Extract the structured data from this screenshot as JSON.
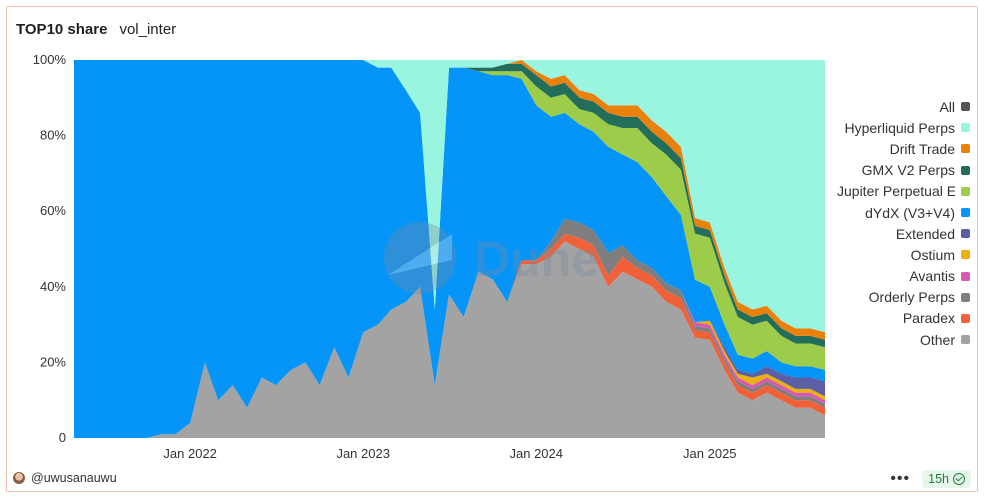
{
  "header": {
    "title": "TOP10 share",
    "subtitle": "vol_inter"
  },
  "footer": {
    "author": "@uwusanauwu",
    "refresh_badge": "15h",
    "more_icon": "ellipsis-icon",
    "status_icon": "check-circle-icon"
  },
  "watermark": "Dune",
  "legend": [
    {
      "label": "All",
      "color": "#555555"
    },
    {
      "label": "Hyperliquid Perps",
      "color": "#9af5e0"
    },
    {
      "label": "Drift Trade",
      "color": "#e8820c"
    },
    {
      "label": "GMX V2 Perps",
      "color": "#236e5a"
    },
    {
      "label": "Jupiter Perpetual Exchange",
      "color": "#9ccc4a"
    },
    {
      "label": "dYdX (V3+V4)",
      "color": "#0594f7"
    },
    {
      "label": "Extended",
      "color": "#5a5fa6"
    },
    {
      "label": "Ostium",
      "color": "#ecb00b"
    },
    {
      "label": "Avantis",
      "color": "#d65ab4"
    },
    {
      "label": "Orderly Perps",
      "color": "#7e7e7e"
    },
    {
      "label": "Paradex",
      "color": "#f0613a"
    },
    {
      "label": "Other",
      "color": "#a3a3a3"
    }
  ],
  "chart_data": {
    "type": "area",
    "stacked": true,
    "normalized": true,
    "x": [
      "2021-05-01",
      "2021-06-01",
      "2021-07-01",
      "2021-08-01",
      "2021-09-01",
      "2021-10-01",
      "2021-11-01",
      "2021-12-01",
      "2022-01-01",
      "2022-02-01",
      "2022-03-01",
      "2022-04-01",
      "2022-05-01",
      "2022-06-01",
      "2022-07-01",
      "2022-08-01",
      "2022-09-01",
      "2022-10-01",
      "2022-11-01",
      "2022-12-01",
      "2023-01-01",
      "2023-02-01",
      "2023-03-01",
      "2023-04-01",
      "2023-05-01",
      "2023-06-01",
      "2023-07-01",
      "2023-08-01",
      "2023-09-01",
      "2023-10-01",
      "2023-11-01",
      "2023-12-01",
      "2024-01-01",
      "2024-02-01",
      "2024-03-01",
      "2024-04-01",
      "2024-05-01",
      "2024-06-01",
      "2024-07-01",
      "2024-08-01",
      "2024-09-01",
      "2024-10-01",
      "2024-11-01",
      "2024-12-01",
      "2025-01-01",
      "2025-02-01",
      "2025-03-01",
      "2025-04-01",
      "2025-05-01",
      "2025-06-01",
      "2025-07-01",
      "2025-08-01",
      "2025-09-01"
    ],
    "series": [
      {
        "name": "Other",
        "values": [
          0,
          0,
          0,
          0,
          0,
          0,
          1,
          1,
          4,
          20,
          10,
          14,
          8,
          16,
          14,
          18,
          20,
          14,
          24,
          16,
          28,
          30,
          34,
          36,
          40,
          14,
          38,
          32,
          44,
          42,
          36,
          46,
          46,
          48,
          52,
          50,
          48,
          40,
          44,
          42,
          40,
          36,
          34,
          26,
          26,
          18,
          12,
          10,
          12,
          10,
          8,
          8,
          6
        ]
      },
      {
        "name": "Paradex",
        "values": [
          0,
          0,
          0,
          0,
          0,
          0,
          0,
          0,
          0,
          0,
          0,
          0,
          0,
          0,
          0,
          0,
          0,
          0,
          0,
          0,
          0,
          0,
          0,
          0,
          0,
          0,
          0,
          0,
          0,
          0,
          0,
          1,
          1,
          2,
          2,
          3,
          3,
          3,
          4,
          3,
          3,
          3,
          3,
          2,
          2,
          2,
          2,
          2,
          2,
          2,
          2,
          2,
          2
        ]
      },
      {
        "name": "Orderly Perps",
        "values": [
          0,
          0,
          0,
          0,
          0,
          0,
          0,
          0,
          0,
          0,
          0,
          0,
          0,
          0,
          0,
          0,
          0,
          0,
          0,
          0,
          0,
          0,
          0,
          0,
          0,
          0,
          0,
          0,
          0,
          0,
          0,
          0,
          0,
          2,
          4,
          4,
          4,
          6,
          3,
          2,
          2,
          2,
          2,
          1,
          1,
          1,
          1,
          1,
          1,
          1,
          1,
          1,
          1
        ]
      },
      {
        "name": "Avantis",
        "values": [
          0,
          0,
          0,
          0,
          0,
          0,
          0,
          0,
          0,
          0,
          0,
          0,
          0,
          0,
          0,
          0,
          0,
          0,
          0,
          0,
          0,
          0,
          0,
          0,
          0,
          0,
          0,
          0,
          0,
          0,
          0,
          0,
          0,
          0,
          0,
          0,
          0,
          0,
          0,
          0,
          0,
          0,
          0,
          1,
          1,
          1,
          1,
          1,
          1,
          1,
          1,
          1,
          1
        ]
      },
      {
        "name": "Ostium",
        "values": [
          0,
          0,
          0,
          0,
          0,
          0,
          0,
          0,
          0,
          0,
          0,
          0,
          0,
          0,
          0,
          0,
          0,
          0,
          0,
          0,
          0,
          0,
          0,
          0,
          0,
          0,
          0,
          0,
          0,
          0,
          0,
          0,
          0,
          0,
          0,
          0,
          0,
          0,
          0,
          0,
          0,
          0,
          0,
          0,
          1,
          1,
          1,
          2,
          1,
          1,
          1,
          1,
          1
        ]
      },
      {
        "name": "Extended",
        "values": [
          0,
          0,
          0,
          0,
          0,
          0,
          0,
          0,
          0,
          0,
          0,
          0,
          0,
          0,
          0,
          0,
          0,
          0,
          0,
          0,
          0,
          0,
          0,
          0,
          0,
          0,
          0,
          0,
          0,
          0,
          0,
          0,
          0,
          0,
          0,
          0,
          0,
          0,
          0,
          0,
          0,
          0,
          0,
          0,
          0,
          1,
          1,
          1,
          2,
          2,
          3,
          3,
          4
        ]
      },
      {
        "name": "dYdX (V3+V4)",
        "values": [
          100,
          100,
          100,
          100,
          100,
          100,
          99,
          99,
          96,
          80,
          90,
          86,
          92,
          84,
          86,
          82,
          80,
          86,
          76,
          84,
          72,
          68,
          64,
          56,
          46,
          20,
          60,
          66,
          53,
          54,
          60,
          48,
          41,
          33,
          28,
          26,
          26,
          28,
          24,
          26,
          24,
          23,
          20,
          11,
          9,
          6,
          4,
          4,
          4,
          3,
          3,
          3,
          3
        ]
      },
      {
        "name": "Jupiter Perpetual Exchange",
        "values": [
          0,
          0,
          0,
          0,
          0,
          0,
          0,
          0,
          0,
          0,
          0,
          0,
          0,
          0,
          0,
          0,
          0,
          0,
          0,
          0,
          0,
          0,
          0,
          0,
          0,
          0,
          0,
          0,
          0,
          1,
          1,
          2,
          5,
          5,
          5,
          4,
          5,
          6,
          7,
          9,
          9,
          11,
          12,
          12,
          13,
          11,
          10,
          9,
          8,
          7,
          6,
          6,
          6
        ]
      },
      {
        "name": "GMX V2 Perps",
        "values": [
          0,
          0,
          0,
          0,
          0,
          0,
          0,
          0,
          0,
          0,
          0,
          0,
          0,
          0,
          0,
          0,
          0,
          0,
          0,
          0,
          0,
          0,
          0,
          0,
          0,
          0,
          0,
          0,
          1,
          1,
          2,
          2,
          3,
          3,
          3,
          3,
          3,
          3,
          3,
          3,
          3,
          3,
          3,
          2,
          2,
          2,
          2,
          2,
          2,
          2,
          2,
          2,
          2
        ]
      },
      {
        "name": "Drift Trade",
        "values": [
          0,
          0,
          0,
          0,
          0,
          0,
          0,
          0,
          0,
          0,
          0,
          0,
          0,
          0,
          0,
          0,
          0,
          0,
          0,
          0,
          0,
          0,
          0,
          0,
          0,
          0,
          0,
          0,
          0,
          0,
          0,
          1,
          1,
          2,
          2,
          2,
          2,
          2,
          3,
          3,
          3,
          3,
          3,
          2,
          2,
          2,
          2,
          2,
          2,
          2,
          2,
          2,
          2
        ]
      },
      {
        "name": "Hyperliquid Perps",
        "values": [
          0,
          0,
          0,
          0,
          0,
          0,
          0,
          0,
          0,
          0,
          0,
          0,
          0,
          0,
          0,
          0,
          0,
          0,
          0,
          0,
          0,
          2,
          2,
          8,
          14,
          66,
          2,
          2,
          2,
          2,
          1,
          0,
          3,
          5,
          4,
          8,
          9,
          12,
          12,
          12,
          16,
          19,
          23,
          41,
          43,
          55,
          64,
          66,
          65,
          69,
          71,
          71,
          72
        ]
      }
    ],
    "xticks": [
      "Jan 2022",
      "Jan 2023",
      "Jan 2024",
      "Jan 2025"
    ],
    "xtick_dates": [
      "2022-01-01",
      "2023-01-01",
      "2024-01-01",
      "2025-01-01"
    ],
    "x_range": [
      "2021-05-01",
      "2025-09-01"
    ],
    "yticks": [
      "0",
      "20%",
      "40%",
      "60%",
      "80%",
      "100%"
    ],
    "ylim": [
      0,
      100
    ],
    "legend_position": "right",
    "grid": false
  }
}
